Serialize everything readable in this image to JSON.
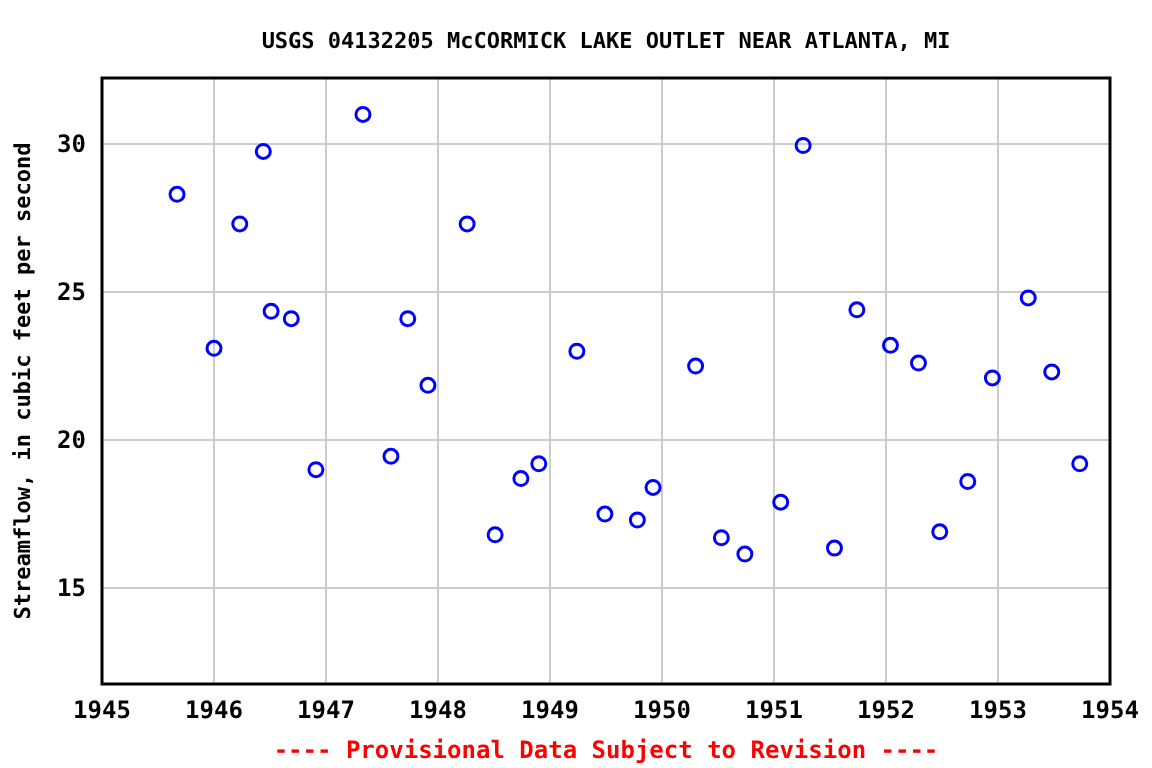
{
  "chart_data": {
    "type": "scatter",
    "title": "USGS 04132205 McCORMICK LAKE OUTLET NEAR ATLANTA, MI",
    "ylabel": "Streamflow, in cubic feet per second",
    "annotations": [
      "---- Provisional Data Subject to Revision ----"
    ],
    "x": [
      1945.67,
      1946.0,
      1946.23,
      1946.44,
      1946.51,
      1946.69,
      1946.91,
      1947.33,
      1947.58,
      1947.73,
      1947.91,
      1948.26,
      1948.51,
      1948.74,
      1948.9,
      1949.24,
      1949.49,
      1949.78,
      1949.92,
      1950.3,
      1950.53,
      1950.74,
      1951.06,
      1951.26,
      1951.54,
      1951.74,
      1952.04,
      1952.29,
      1952.48,
      1952.73,
      1952.95,
      1953.27,
      1953.48,
      1953.73
    ],
    "series": [
      {
        "color": "#0000ff",
        "values": [
          28.3,
          23.1,
          27.3,
          29.75,
          24.35,
          24.1,
          19.0,
          31.0,
          19.45,
          24.1,
          21.85,
          27.3,
          16.8,
          18.7,
          19.2,
          23.0,
          17.5,
          17.3,
          18.4,
          22.5,
          16.7,
          16.15,
          17.9,
          29.95,
          16.35,
          24.4,
          23.2,
          22.6,
          16.9,
          18.6,
          22.1,
          24.8,
          22.3,
          19.2
        ]
      }
    ],
    "xlim": [
      1945,
      1954
    ],
    "xticks": [
      1945,
      1946,
      1947,
      1948,
      1949,
      1950,
      1951,
      1952,
      1953,
      1954
    ],
    "ylim": [
      11.76,
      32.23
    ],
    "yticks": [
      15,
      20,
      25,
      30
    ],
    "grid": true,
    "marker": "circle"
  }
}
